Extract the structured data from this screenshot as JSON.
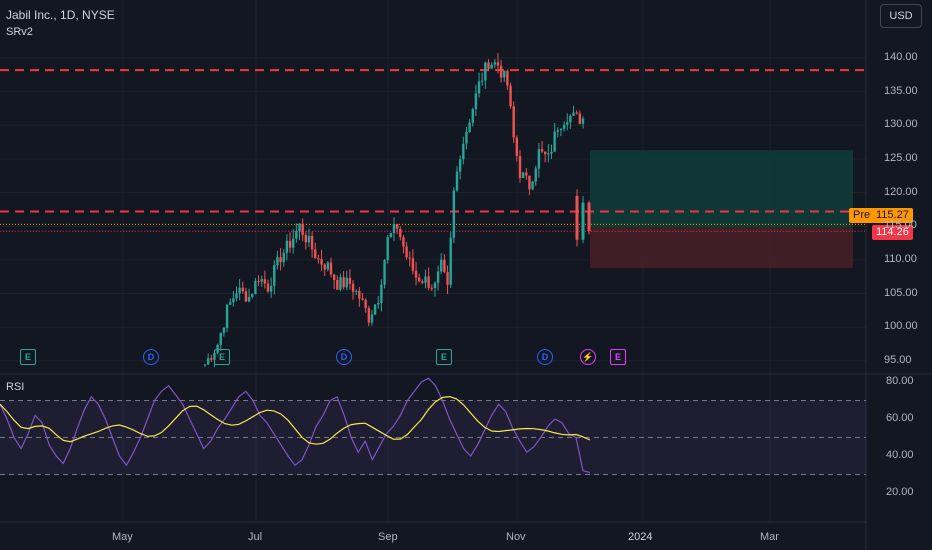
{
  "header": {
    "symbol": "Jabil Inc., 1D, NYSE",
    "indicator": "SRv2",
    "currency": "USD"
  },
  "rsi_panel": {
    "label": "RSI"
  },
  "price_tags": {
    "pre_label": "Pre",
    "pre_price": "115.27",
    "last_price": "114.26"
  },
  "price_axis": [
    "140.00",
    "135.00",
    "130.00",
    "125.00",
    "120.00",
    "115.00",
    "110.00",
    "105.00",
    "100.00",
    "95.00"
  ],
  "rsi_axis": [
    "80.00",
    "60.00",
    "40.00",
    "20.00"
  ],
  "time_axis": [
    "May",
    "Jul",
    "Sep",
    "Nov",
    "2024",
    "Mar"
  ],
  "events": [
    {
      "letter": "E",
      "kind": "earnings"
    },
    {
      "letter": "D",
      "kind": "dividend"
    },
    {
      "letter": "E",
      "kind": "earnings"
    },
    {
      "letter": "D",
      "kind": "dividend"
    },
    {
      "letter": "E",
      "kind": "earnings"
    },
    {
      "letter": "D",
      "kind": "dividend"
    },
    {
      "letter": "⚡",
      "kind": "split"
    },
    {
      "letter": "E",
      "kind": "earnings-upcoming"
    }
  ],
  "colors": {
    "background": "#131722",
    "up": "#26a69a",
    "down": "#ef5350",
    "level_line": "#f23645",
    "rsi_line": "#7e57c2",
    "rsi_ma": "#f5e94c",
    "long_zone": "#0f3d3a",
    "short_zone": "#4a1f26"
  },
  "chart_data": {
    "type": "candlestick",
    "title": "Jabil Inc., 1D, NYSE",
    "ylim": [
      94,
      142
    ],
    "x_ticks": [
      "May",
      "Jul",
      "Sep",
      "Nov",
      "2024",
      "Mar"
    ],
    "y_ticks": [
      95,
      100,
      105,
      110,
      115,
      120,
      125,
      130,
      135,
      140
    ],
    "horizontal_levels": [
      138.2,
      117.2
    ],
    "last_price": 114.26,
    "pre_market_price": 115.27,
    "position_tool": {
      "target": 126.3,
      "entry": 114.8,
      "stop": 108.8
    },
    "close_path": [
      {
        "t": 0,
        "c": 94.5
      },
      {
        "t": 4,
        "c": 97.5
      },
      {
        "t": 7,
        "c": 102.5
      },
      {
        "t": 10,
        "c": 105.5
      },
      {
        "t": 14,
        "c": 104.5
      },
      {
        "t": 17,
        "c": 107.5
      },
      {
        "t": 20,
        "c": 106
      },
      {
        "t": 24,
        "c": 110.5
      },
      {
        "t": 27,
        "c": 112.5
      },
      {
        "t": 30,
        "c": 115
      },
      {
        "t": 33,
        "c": 112.5
      },
      {
        "t": 36,
        "c": 110
      },
      {
        "t": 39,
        "c": 109
      },
      {
        "t": 42,
        "c": 106.5
      },
      {
        "t": 46,
        "c": 106.5
      },
      {
        "t": 49,
        "c": 104.5
      },
      {
        "t": 52,
        "c": 101.5
      },
      {
        "t": 55,
        "c": 104.5
      },
      {
        "t": 58,
        "c": 113
      },
      {
        "t": 61,
        "c": 115
      },
      {
        "t": 64,
        "c": 110.5
      },
      {
        "t": 67,
        "c": 107.5
      },
      {
        "t": 70,
        "c": 107
      },
      {
        "t": 73,
        "c": 106
      },
      {
        "t": 75,
        "c": 109
      },
      {
        "t": 77,
        "c": 105.5
      },
      {
        "t": 79,
        "c": 120
      },
      {
        "t": 81,
        "c": 126
      },
      {
        "t": 84,
        "c": 131
      },
      {
        "t": 87,
        "c": 136
      },
      {
        "t": 90,
        "c": 139.5
      },
      {
        "t": 93,
        "c": 139
      },
      {
        "t": 96,
        "c": 136
      },
      {
        "t": 98,
        "c": 128
      },
      {
        "t": 100,
        "c": 123
      },
      {
        "t": 103,
        "c": 121
      },
      {
        "t": 106,
        "c": 126
      },
      {
        "t": 109,
        "c": 125
      },
      {
        "t": 112,
        "c": 130
      },
      {
        "t": 115,
        "c": 131.5
      },
      {
        "t": 118,
        "c": 131
      },
      {
        "t": 121,
        "c": 131
      }
    ],
    "gap_candles": [
      {
        "o": 119.5,
        "c": 113,
        "h": 120.5,
        "l": 112
      },
      {
        "o": 113,
        "c": 118.5,
        "h": 119.5,
        "l": 112.5
      },
      {
        "o": 118.5,
        "c": 114.3,
        "h": 118.8,
        "l": 113.8
      }
    ],
    "rsi": {
      "ylim": [
        15,
        85
      ],
      "levels": [
        70,
        30
      ],
      "values": [
        68,
        60,
        50,
        44,
        52,
        62,
        58,
        46,
        40,
        36,
        44,
        55,
        65,
        72,
        68,
        60,
        50,
        40,
        35,
        42,
        50,
        60,
        70,
        75,
        78,
        73,
        68,
        60,
        52,
        44,
        48,
        55,
        60,
        66,
        72,
        75,
        70,
        62,
        58,
        52,
        46,
        40,
        35,
        38,
        46,
        56,
        62,
        70,
        72,
        62,
        50,
        42,
        48,
        38,
        45,
        52,
        56,
        62,
        70,
        75,
        80,
        82,
        78,
        70,
        60,
        52,
        44,
        40,
        46,
        54,
        62,
        68,
        64,
        55,
        48,
        42,
        45,
        50,
        56,
        60,
        58,
        52,
        50,
        32,
        31
      ]
    }
  }
}
